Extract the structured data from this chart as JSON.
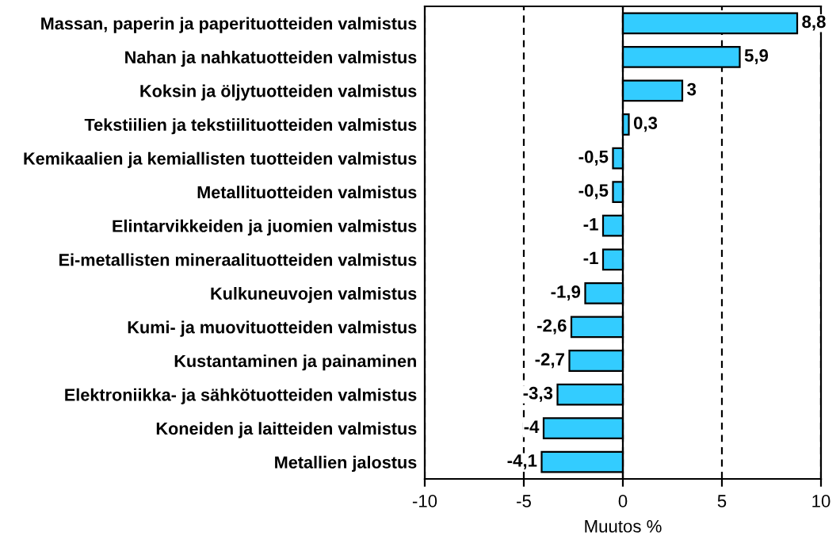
{
  "chart_data": {
    "type": "bar",
    "orientation": "horizontal",
    "categories": [
      "Massan, paperin ja paperituotteiden valmistus",
      "Nahan ja nahkatuotteiden valmistus",
      "Koksin ja öljytuotteiden valmistus",
      "Tekstiilien ja tekstiilituotteiden valmistus",
      "Kemikaalien ja kemiallisten tuotteiden valmistus",
      "Metallituotteiden valmistus",
      "Elintarvikkeiden ja juomien valmistus",
      "Ei-metallisten mineraalituotteiden valmistus",
      "Kulkuneuvojen valmistus",
      "Kumi- ja muovituotteiden valmistus",
      "Kustantaminen ja painaminen",
      "Elektroniikka- ja sähkötuotteiden valmistus",
      "Koneiden ja laitteiden valmistus",
      "Metallien jalostus"
    ],
    "values": [
      8.8,
      5.9,
      3,
      0.3,
      -0.5,
      -0.5,
      -1,
      -1,
      -1.9,
      -2.6,
      -2.7,
      -3.3,
      -4,
      -4.1
    ],
    "value_labels": [
      "8,8",
      "5,9",
      "3",
      "0,3",
      "-0,5",
      "-0,5",
      "-1",
      "-1",
      "-1,9",
      "-2,6",
      "-2,7",
      "-3,3",
      "-4",
      "-4,1"
    ],
    "color": "#33ccff",
    "xlim": [
      -10,
      10
    ],
    "xticks": [
      -10,
      -5,
      0,
      5,
      10
    ],
    "xlabel": "Muutos %",
    "grid": "x"
  }
}
